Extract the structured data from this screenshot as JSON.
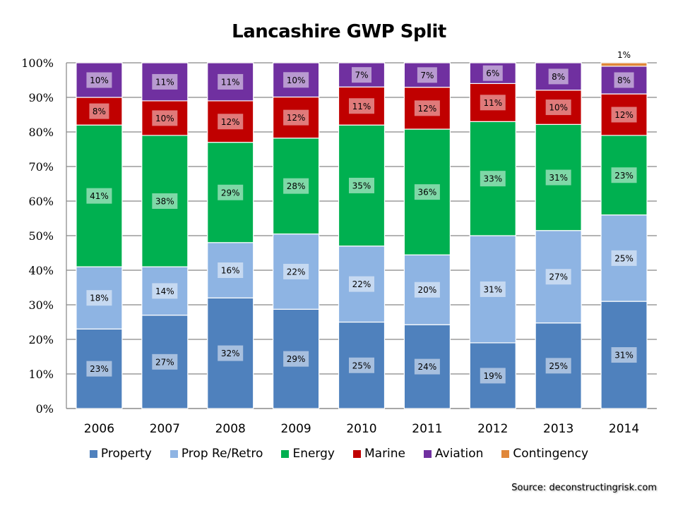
{
  "chart_data": {
    "type": "bar",
    "stacked": true,
    "title": "Lancashire GWP Split",
    "xlabel": "",
    "ylabel": "",
    "ylim": [
      0,
      100
    ],
    "yticks": [
      "0%",
      "10%",
      "20%",
      "30%",
      "40%",
      "50%",
      "60%",
      "70%",
      "80%",
      "90%",
      "100%"
    ],
    "grid": true,
    "legend": "bottom",
    "categories": [
      "2006",
      "2007",
      "2008",
      "2009",
      "2010",
      "2011",
      "2012",
      "2013",
      "2014"
    ],
    "series": [
      {
        "name": "Property",
        "color": "#4F81BD",
        "label_bg": "#A7BFDE",
        "values": [
          23,
          27,
          32,
          29,
          25,
          24,
          19,
          25,
          31
        ]
      },
      {
        "name": "Prop Re/Retro",
        "color": "#8EB4E3",
        "label_bg": "#C6D9F1",
        "values": [
          18,
          14,
          16,
          22,
          22,
          20,
          31,
          27,
          25
        ]
      },
      {
        "name": "Energy",
        "color": "#00B050",
        "label_bg": "#7FD8A7",
        "values": [
          41,
          38,
          29,
          28,
          35,
          36,
          33,
          31,
          23
        ]
      },
      {
        "name": "Marine",
        "color": "#C00000",
        "label_bg": "#E07A7A",
        "values": [
          8,
          10,
          12,
          12,
          11,
          12,
          11,
          10,
          12
        ]
      },
      {
        "name": "Aviation",
        "color": "#7030A0",
        "label_bg": "#B89AD0",
        "values": [
          10,
          11,
          11,
          10,
          7,
          7,
          6,
          8,
          8
        ]
      },
      {
        "name": "Contingency",
        "color": "#E0873A",
        "label_bg": "#FFFFFF",
        "values": [
          0,
          0,
          0,
          0,
          0,
          0,
          0,
          0,
          1
        ]
      }
    ],
    "data_labels": [
      [
        "23%",
        "27%",
        "32%",
        "29%",
        "25%",
        "24%",
        "19%",
        "25%",
        "31%"
      ],
      [
        "18%",
        "14%",
        "16%",
        "22%",
        "22%",
        "20%",
        "31%",
        "27%",
        "25%"
      ],
      [
        "41%",
        "38%",
        "29%",
        "28%",
        "35%",
        "36%",
        "33%",
        "31%",
        "23%"
      ],
      [
        "8%",
        "10%",
        "12%",
        "12%",
        "11%",
        "12%",
        "11%",
        "10%",
        "12%"
      ],
      [
        "10%",
        "11%",
        "11%",
        "10%",
        "7%",
        "7%",
        "6%",
        "8%",
        "8%"
      ],
      [
        "",
        "",
        "",
        "",
        "",
        "",
        "",
        "",
        "1%"
      ]
    ]
  },
  "source": "Source: deconstructingrisk.com"
}
